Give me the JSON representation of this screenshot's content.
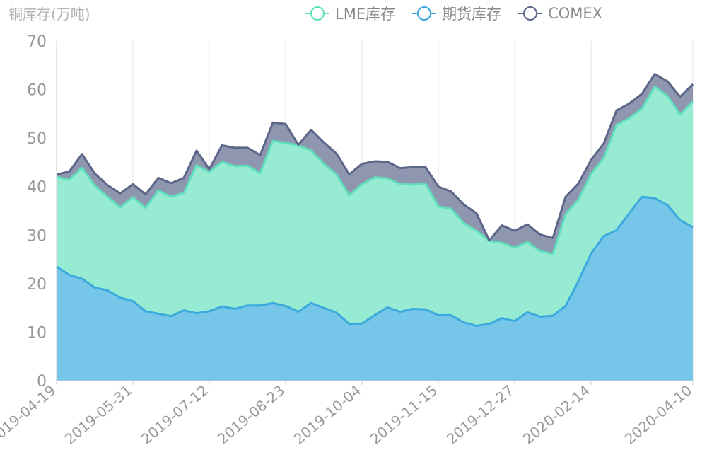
{
  "chart_data": {
    "type": "area",
    "stacked": true,
    "ylabel": "铜库存(万吨)",
    "ylim": [
      0,
      70
    ],
    "yticks": [
      0,
      10,
      20,
      30,
      40,
      50,
      60,
      70
    ],
    "x_tick_labels": [
      "2019-04-19",
      "2019-05-31",
      "2019-07-12",
      "2019-08-23",
      "2019-10-04",
      "2019-11-15",
      "2019-12-27",
      "2020-02-14",
      "2020-04-10"
    ],
    "x_tick_index": [
      0,
      6,
      12,
      18,
      24,
      30,
      36,
      42,
      50
    ],
    "grid": "vertical",
    "legend_position": "top-right",
    "n_points": 51,
    "series": [
      {
        "name": "期货库存",
        "color": "#3ba9dd",
        "fill": "#76c6ea",
        "values": [
          23.5,
          21.8,
          21.0,
          19.2,
          18.6,
          17.1,
          16.4,
          14.3,
          13.8,
          13.3,
          14.5,
          13.9,
          14.3,
          15.3,
          14.8,
          15.5,
          15.5,
          16.0,
          15.4,
          14.2,
          16.0,
          15.0,
          14.0,
          11.7,
          11.8,
          13.5,
          15.1,
          14.2,
          14.8,
          14.7,
          13.5,
          13.5,
          12.0,
          11.3,
          11.7,
          12.9,
          12.3,
          14.1,
          13.2,
          13.4,
          15.4,
          20.5,
          26.2,
          29.8,
          31.0,
          34.5,
          37.9,
          37.6,
          36.2,
          33.1,
          31.6
        ]
      },
      {
        "name": "LME库存",
        "color": "#5fe0bd",
        "fill": "#98ebd3",
        "values": [
          18.5,
          19.6,
          22.9,
          21.0,
          19.3,
          18.6,
          21.4,
          21.3,
          25.4,
          24.6,
          24.2,
          30.5,
          28.7,
          29.8,
          29.4,
          28.8,
          27.3,
          33.4,
          33.6,
          34.3,
          31.4,
          29.7,
          28.5,
          26.5,
          28.7,
          28.4,
          26.6,
          26.3,
          25.6,
          25.9,
          22.4,
          21.9,
          20.5,
          19.6,
          17.1,
          15.5,
          15.1,
          14.5,
          13.5,
          12.7,
          18.9,
          16.8,
          16.4,
          16.1,
          21.7,
          19.6,
          18.2,
          23.0,
          22.5,
          21.8,
          25.9
        ]
      },
      {
        "name": "COMEX",
        "color": "#5b6689",
        "fill": "#8f97b0",
        "values": [
          0.5,
          1.7,
          2.8,
          2.5,
          2.4,
          2.9,
          2.7,
          2.8,
          2.6,
          2.8,
          3.1,
          3.0,
          0.6,
          3.4,
          3.8,
          3.7,
          3.7,
          3.8,
          3.9,
          0.1,
          4.3,
          4.4,
          4.3,
          4.3,
          4.2,
          3.3,
          3.4,
          3.3,
          3.6,
          3.4,
          4.1,
          3.6,
          3.8,
          3.6,
          0.1,
          3.6,
          3.5,
          3.6,
          3.4,
          3.3,
          3.6,
          3.3,
          2.9,
          3.0,
          3.0,
          3.0,
          3.0,
          2.6,
          3.0,
          3.6,
          3.6
        ]
      }
    ]
  },
  "legend_order": [
    1,
    0,
    2
  ]
}
